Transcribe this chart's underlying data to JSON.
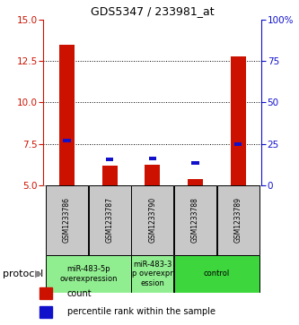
{
  "title": "GDS5347 / 233981_at",
  "samples": [
    "GSM1233786",
    "GSM1233787",
    "GSM1233790",
    "GSM1233788",
    "GSM1233789"
  ],
  "red_values": [
    13.5,
    6.2,
    6.25,
    5.4,
    12.8
  ],
  "blue_values_left_scale": [
    7.7,
    6.55,
    6.6,
    6.35,
    7.5
  ],
  "ylim_left": [
    5,
    15
  ],
  "ylim_right": [
    0,
    100
  ],
  "left_ticks": [
    5,
    7.5,
    10,
    12.5,
    15
  ],
  "right_ticks": [
    0,
    25,
    50,
    75,
    100
  ],
  "right_tick_labels": [
    "0",
    "25",
    "50",
    "75",
    "100%"
  ],
  "dotted_lines": [
    7.5,
    10,
    12.5
  ],
  "groups": [
    {
      "label": "miR-483-5p\noverexpression",
      "cols": [
        0,
        1
      ],
      "color": "#90EE90"
    },
    {
      "label": "miR-483-3\np overexpr\nession",
      "cols": [
        2
      ],
      "color": "#90EE90"
    },
    {
      "label": "control",
      "cols": [
        3,
        4
      ],
      "color": "#3DD63D"
    }
  ],
  "protocol_label": "protocol",
  "legend_red_label": "count",
  "legend_blue_label": "percentile rank within the sample",
  "bar_width": 0.35,
  "blue_bar_width": 0.18,
  "blue_bar_height": 0.22,
  "red_color": "#CC1100",
  "blue_color": "#1111CC",
  "sample_box_color": "#C8C8C8",
  "left_tick_color": "#CC1100",
  "right_tick_color": "#1111CC",
  "spine_color_left": "#CC1100",
  "spine_color_right": "#1111CC",
  "title_fontsize": 9,
  "tick_fontsize": 7.5,
  "sample_fontsize": 5.5,
  "group_fontsize": 6,
  "legend_fontsize": 7,
  "protocol_fontsize": 8
}
